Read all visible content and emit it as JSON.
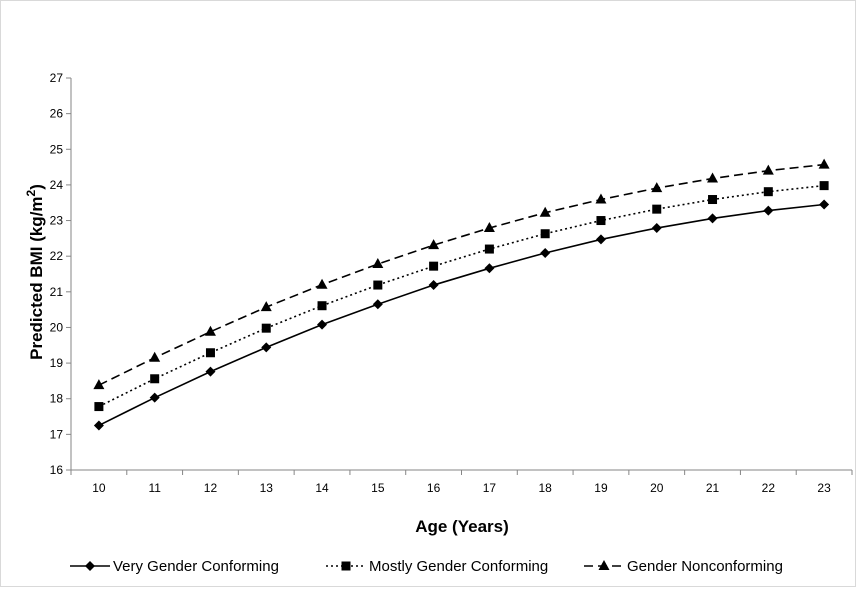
{
  "chart_data": {
    "type": "line",
    "title": "",
    "xlabel": "Age (Years)",
    "ylabel": "Predicted BMI (kg/m",
    "ylabel_superscript": "2",
    "ylabel_suffix": ")",
    "x": [
      10,
      11,
      12,
      13,
      14,
      15,
      16,
      17,
      18,
      19,
      20,
      21,
      22,
      23
    ],
    "ylim": [
      16,
      27
    ],
    "y_ticks": [
      16,
      17,
      18,
      19,
      20,
      21,
      22,
      23,
      24,
      25,
      26,
      27
    ],
    "grid": false,
    "legend_position": "bottom",
    "series": [
      {
        "name": "Very Gender Conforming",
        "marker": "diamond",
        "line": "solid",
        "values": [
          17.25,
          18.03,
          18.76,
          19.44,
          20.08,
          20.65,
          21.19,
          21.66,
          22.09,
          22.47,
          22.79,
          23.06,
          23.28,
          23.45
        ]
      },
      {
        "name": "Mostly Gender Conforming",
        "marker": "square",
        "line": "dotted",
        "values": [
          17.78,
          18.56,
          19.29,
          19.98,
          20.61,
          21.19,
          21.72,
          22.2,
          22.63,
          23.0,
          23.32,
          23.59,
          23.81,
          23.98
        ]
      },
      {
        "name": "Gender Nonconforming",
        "marker": "triangle",
        "line": "dashed",
        "values": [
          18.38,
          19.15,
          19.88,
          20.57,
          21.2,
          21.78,
          22.31,
          22.79,
          23.22,
          23.59,
          23.91,
          24.18,
          24.4,
          24.57
        ]
      }
    ]
  }
}
